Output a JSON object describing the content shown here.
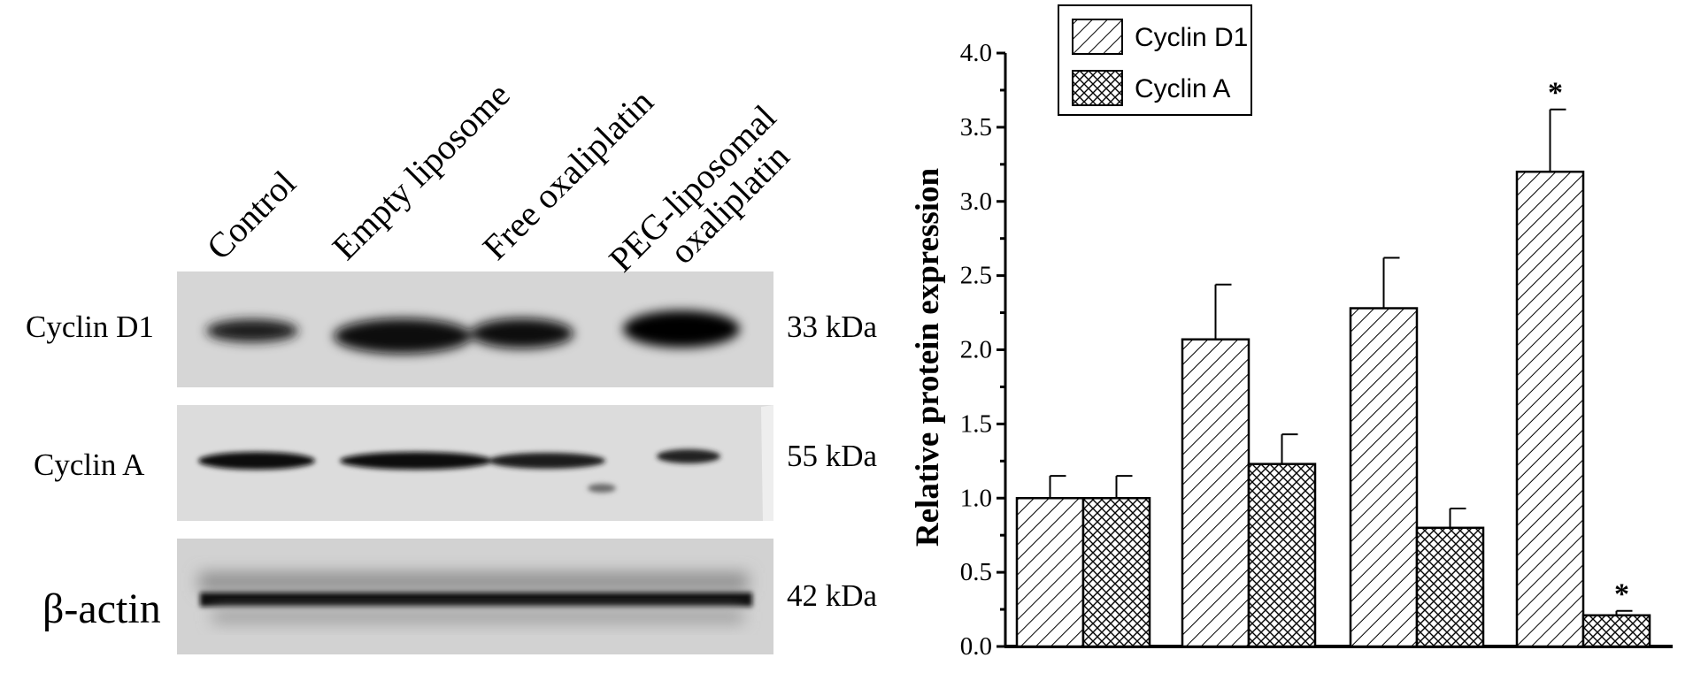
{
  "blot": {
    "lanes": [
      "Control",
      "Empty liposome",
      "Free oxaliplatin",
      "PEG-liposomal oxaliplatin"
    ],
    "rows": [
      {
        "protein": "Cyclin D1",
        "size": "33 kDa"
      },
      {
        "protein": "Cyclin A",
        "size": "55 kDa"
      },
      {
        "protein": "β-actin",
        "size": "42 kDa"
      }
    ]
  },
  "chart_data": {
    "type": "bar",
    "title": "",
    "xlabel": "",
    "ylabel": "Relative protein expression",
    "ylim": [
      0,
      4.0
    ],
    "yticks": [
      "0.0",
      "0.5",
      "1.0",
      "1.5",
      "2.0",
      "2.5",
      "3.0",
      "3.5",
      "4.0"
    ],
    "categories": [
      "Control",
      "Empty liposome",
      "Free oxaliplatin",
      "PEG-liposomal oxaliplatin"
    ],
    "series": [
      {
        "name": "Cyclin D1",
        "pattern": "diagonal-hatch",
        "values": [
          1.0,
          2.07,
          2.28,
          3.2
        ],
        "errors": [
          0.15,
          0.37,
          0.34,
          0.42
        ],
        "significance": [
          "",
          "",
          "",
          "*"
        ]
      },
      {
        "name": "Cyclin A",
        "pattern": "cross-hatch",
        "values": [
          1.0,
          1.23,
          0.8,
          0.21
        ],
        "errors": [
          0.15,
          0.2,
          0.13,
          0.03
        ],
        "significance": [
          "",
          "",
          "",
          "*"
        ]
      }
    ],
    "legend": "top-left",
    "grid": false
  }
}
